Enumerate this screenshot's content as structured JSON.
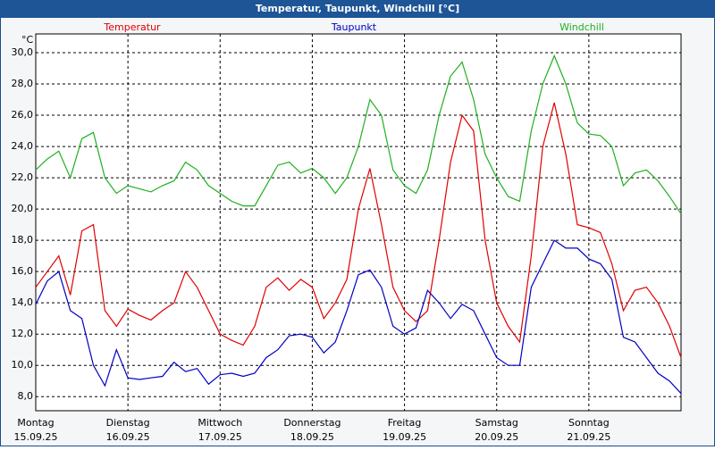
{
  "chart_data": {
    "type": "line",
    "title": "Temperatur, Taupunkt, Windchill [°C]",
    "y_unit": "°C",
    "x": [
      0,
      3,
      6,
      9,
      12,
      15,
      18,
      21,
      24,
      27,
      30,
      33,
      36,
      39,
      42,
      45,
      48,
      51,
      54,
      57,
      60,
      63,
      66,
      69,
      72,
      75,
      78,
      81,
      84,
      87,
      90,
      93,
      96,
      99,
      102,
      105,
      108,
      111,
      114,
      117,
      120,
      123,
      126,
      129,
      132,
      135,
      138,
      141,
      144,
      147,
      150,
      153,
      156,
      159,
      162,
      165,
      168
    ],
    "xlim": [
      0,
      168
    ],
    "xticks": [
      {
        "value": 0,
        "label": "Montag",
        "date": "15.09.25"
      },
      {
        "value": 24,
        "label": "Dienstag",
        "date": "16.09.25"
      },
      {
        "value": 48,
        "label": "Mittwoch",
        "date": "17.09.25"
      },
      {
        "value": 72,
        "label": "Donnerstag",
        "date": "18.09.25"
      },
      {
        "value": 96,
        "label": "Freitag",
        "date": "19.09.25"
      },
      {
        "value": 120,
        "label": "Samstag",
        "date": "20.09.25"
      },
      {
        "value": 144,
        "label": "Sonntag",
        "date": "21.09.25"
      }
    ],
    "ylim": [
      7.1,
      31.2
    ],
    "yticks": [
      {
        "value": 8,
        "label": "8,0"
      },
      {
        "value": 10,
        "label": "10,0"
      },
      {
        "value": 12,
        "label": "12,0"
      },
      {
        "value": 14,
        "label": "14,0"
      },
      {
        "value": 16,
        "label": "16,0"
      },
      {
        "value": 18,
        "label": "18,0"
      },
      {
        "value": 20,
        "label": "20,0"
      },
      {
        "value": 22,
        "label": "22,0"
      },
      {
        "value": 24,
        "label": "24,0"
      },
      {
        "value": 26,
        "label": "26,0"
      },
      {
        "value": 28,
        "label": "28,0"
      },
      {
        "value": 30,
        "label": "30,0"
      }
    ],
    "grid": true,
    "series": [
      {
        "name": "Temperatur",
        "color": "#e00000",
        "values": [
          15.0,
          16.0,
          17.0,
          14.5,
          18.6,
          19.0,
          13.5,
          12.5,
          13.6,
          13.2,
          12.9,
          13.5,
          14.0,
          16.0,
          15.0,
          13.5,
          12.0,
          11.6,
          11.3,
          12.5,
          15.0,
          15.6,
          14.8,
          15.5,
          15.0,
          13.0,
          14.0,
          15.5,
          20.0,
          22.6,
          19.0,
          15.0,
          13.5,
          12.8,
          13.5,
          18.0,
          23.0,
          26.0,
          25.0,
          18.0,
          14.0,
          12.5,
          11.5,
          17.0,
          24.0,
          26.8,
          23.5,
          19.0,
          18.8,
          18.5,
          16.5,
          13.5,
          14.8,
          15.0,
          14.0,
          12.5,
          10.5
        ]
      },
      {
        "name": "Taupunkt",
        "color": "#0000c0",
        "values": [
          13.9,
          15.4,
          16.0,
          13.5,
          13.0,
          10.0,
          8.7,
          11.0,
          9.2,
          9.1,
          9.2,
          9.3,
          10.2,
          9.6,
          9.8,
          8.8,
          9.4,
          9.5,
          9.3,
          9.5,
          10.5,
          11.0,
          11.9,
          12.0,
          11.8,
          10.8,
          11.5,
          13.5,
          15.8,
          16.1,
          15.0,
          12.5,
          12.0,
          12.4,
          14.8,
          14.0,
          13.0,
          13.9,
          13.5,
          12.0,
          10.5,
          10.0,
          10.0,
          15.0,
          16.5,
          18.0,
          17.5,
          17.5,
          16.8,
          16.5,
          15.5,
          11.8,
          11.5,
          10.5,
          9.5,
          9.0,
          8.2
        ]
      },
      {
        "name": "Windchill",
        "color": "#20b020",
        "values": [
          22.5,
          23.2,
          23.7,
          22.0,
          24.5,
          24.9,
          22.0,
          21.0,
          21.5,
          21.3,
          21.1,
          21.5,
          21.8,
          23.0,
          22.5,
          21.5,
          21.0,
          20.5,
          20.2,
          20.2,
          21.5,
          22.8,
          23.0,
          22.3,
          22.6,
          22.0,
          21.0,
          22.0,
          24.0,
          27.0,
          26.0,
          22.5,
          21.5,
          21.0,
          22.5,
          26.0,
          28.5,
          29.4,
          27.0,
          23.5,
          22.0,
          20.8,
          20.5,
          25.0,
          28.0,
          29.8,
          28.0,
          25.5,
          24.8,
          24.7,
          24.0,
          21.5,
          22.3,
          22.5,
          21.8,
          20.8,
          19.7
        ]
      }
    ]
  }
}
